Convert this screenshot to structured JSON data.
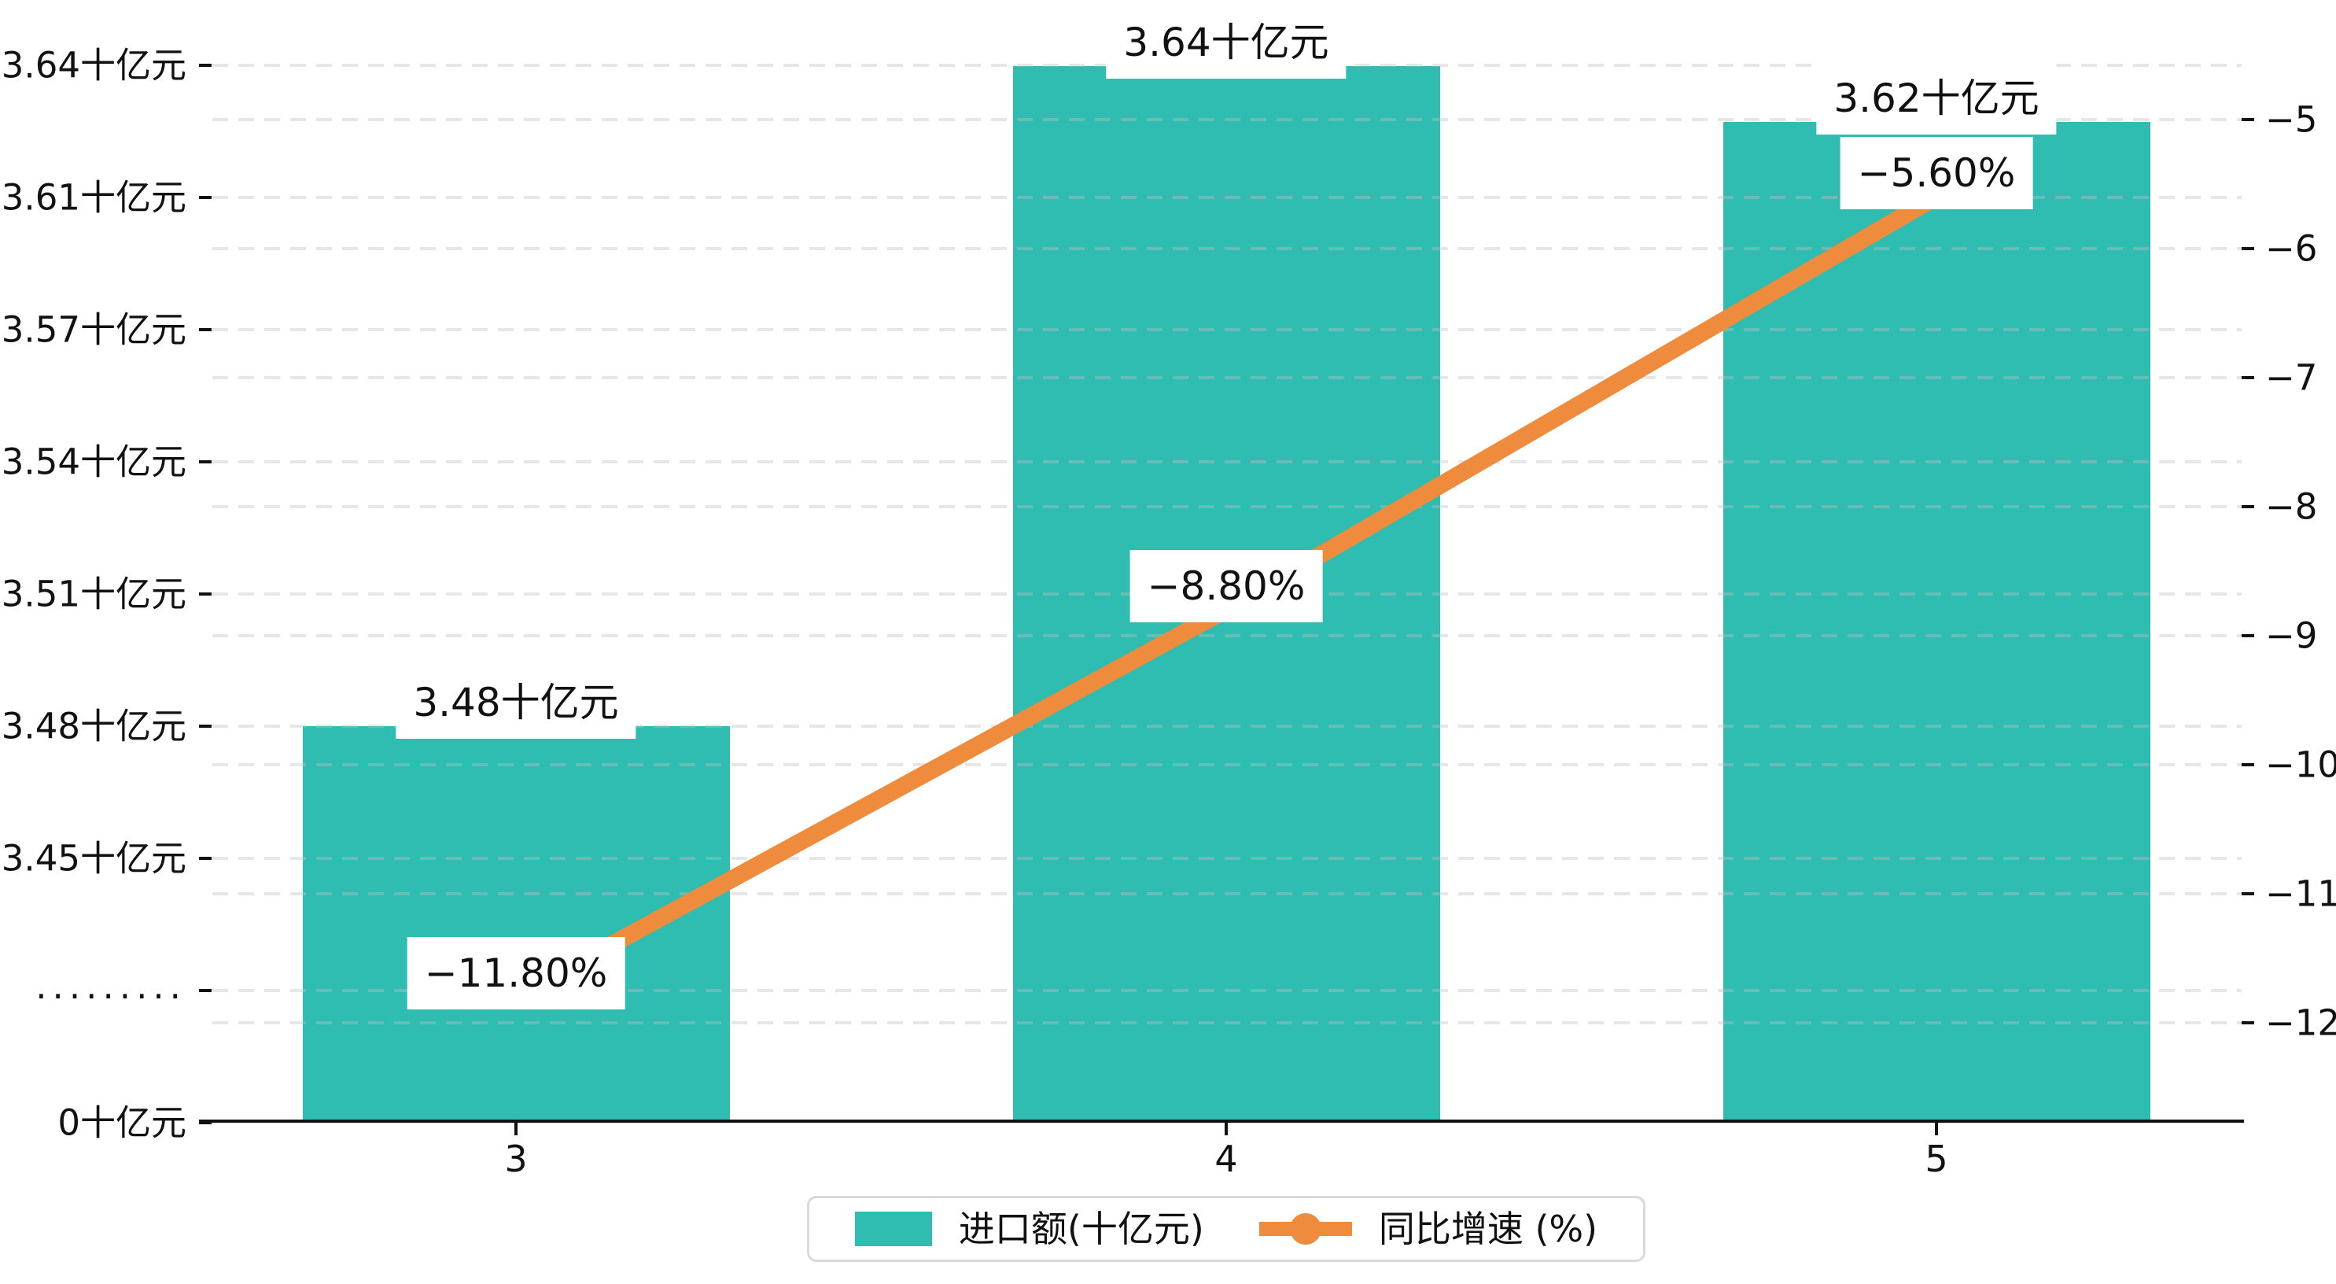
{
  "page": {
    "background": "#ffffff"
  },
  "chart_data": {
    "type": "bar",
    "combo": "bar+line dual axis",
    "categories": [
      "3",
      "4",
      "5"
    ],
    "series": [
      {
        "name": "进口额(十亿元)",
        "type": "bar",
        "axis": "left",
        "unit": "十亿元",
        "color": "#2FBDB2",
        "values": [
          3.48,
          3.64,
          3.62
        ],
        "value_labels": [
          "3.48十亿元",
          "3.64十亿元",
          "3.62十亿元"
        ]
      },
      {
        "name": "同比增速 (%)",
        "type": "line",
        "axis": "right",
        "unit": "%",
        "color": "#EF8B3C",
        "values": [
          -11.8,
          -8.8,
          -5.6
        ],
        "value_labels": [
          "−11.80%",
          "−8.80%",
          "−5.60%"
        ]
      }
    ],
    "left_axis": {
      "tick_labels": [
        "3.64十亿元",
        "3.61十亿元",
        "3.57十亿元",
        "3.54十亿元",
        "3.51十亿元",
        "3.48十亿元",
        "3.45十亿元",
        ".........",
        "0十亿元"
      ],
      "axis_break": true,
      "break_label": "........."
    },
    "right_axis": {
      "tick_labels": [
        "−5",
        "−6",
        "−7",
        "−8",
        "−9",
        "−10",
        "−11",
        "−12"
      ],
      "range": [
        -12,
        -5
      ]
    },
    "x_axis": {
      "tick_labels": [
        "3",
        "4",
        "5"
      ]
    },
    "legend": {
      "position": "bottom",
      "items": [
        "进口额(十亿元)",
        "同比增速 (%)"
      ]
    },
    "grid": "dashed, both axes",
    "colors": {
      "bar": "#2FBDB2",
      "line": "#EF8B3C",
      "text": "#111111",
      "gridline": "#e9e9e9",
      "legend_border": "#dadada",
      "label_background": "#ffffff"
    }
  }
}
